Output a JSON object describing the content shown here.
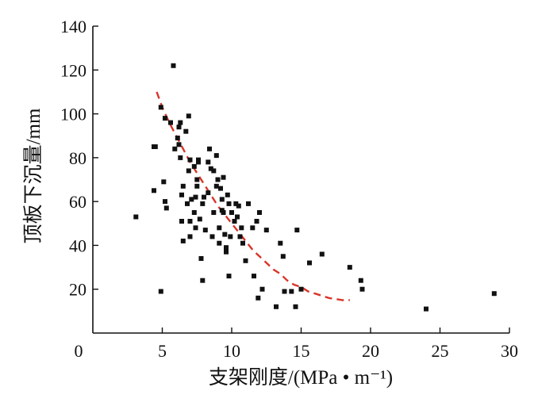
{
  "chart_data": {
    "type": "scatter",
    "title": "",
    "xlabel": "支架刚度/(MPa • m⁻¹)",
    "ylabel": "顶板下沉量/mm",
    "xlim": [
      0,
      30
    ],
    "ylim": [
      0,
      140
    ],
    "x_ticks": [
      0,
      5,
      10,
      15,
      20,
      25,
      30
    ],
    "y_ticks": [
      20,
      40,
      60,
      80,
      100,
      120,
      140
    ],
    "x_tick_labels": [
      "0",
      "5",
      "10",
      "15",
      "20",
      "25",
      "30"
    ],
    "y_tick_labels": [
      "20",
      "40",
      "60",
      "80",
      "100",
      "120",
      "140"
    ],
    "grid": false,
    "legend": "none",
    "colors": {
      "points": "#111111",
      "fit": "#d8352a"
    },
    "series": [
      {
        "kind": "points",
        "marker": "square",
        "points": [
          [
            3.1,
            53
          ],
          [
            4.4,
            85
          ],
          [
            4.5,
            85
          ],
          [
            4.4,
            65
          ],
          [
            4.9,
            103
          ],
          [
            4.9,
            19
          ],
          [
            5.1,
            69
          ],
          [
            5.2,
            60
          ],
          [
            5.3,
            57
          ],
          [
            5.2,
            98
          ],
          [
            5.6,
            96
          ],
          [
            5.8,
            122
          ],
          [
            5.9,
            84
          ],
          [
            6.1,
            89
          ],
          [
            6.2,
            94
          ],
          [
            6.2,
            86
          ],
          [
            6.3,
            80
          ],
          [
            6.3,
            96
          ],
          [
            6.4,
            63
          ],
          [
            6.4,
            51
          ],
          [
            6.5,
            67
          ],
          [
            6.5,
            42
          ],
          [
            6.7,
            92
          ],
          [
            6.8,
            59
          ],
          [
            6.9,
            99
          ],
          [
            6.9,
            74
          ],
          [
            7.0,
            44
          ],
          [
            7.0,
            51
          ],
          [
            7.0,
            79
          ],
          [
            7.1,
            61
          ],
          [
            7.3,
            76
          ],
          [
            7.3,
            55
          ],
          [
            7.4,
            62
          ],
          [
            7.4,
            48
          ],
          [
            7.5,
            70
          ],
          [
            7.5,
            67
          ],
          [
            7.6,
            79
          ],
          [
            7.6,
            78
          ],
          [
            7.7,
            52
          ],
          [
            7.8,
            34
          ],
          [
            7.9,
            24
          ],
          [
            7.9,
            59
          ],
          [
            8.0,
            62
          ],
          [
            8.1,
            47
          ],
          [
            8.3,
            78
          ],
          [
            8.3,
            64
          ],
          [
            8.4,
            84
          ],
          [
            8.5,
            75
          ],
          [
            8.6,
            44
          ],
          [
            8.7,
            55
          ],
          [
            8.7,
            74
          ],
          [
            8.9,
            81
          ],
          [
            8.9,
            67
          ],
          [
            9.0,
            70
          ],
          [
            9.1,
            48
          ],
          [
            9.1,
            41
          ],
          [
            9.2,
            66
          ],
          [
            9.3,
            61
          ],
          [
            9.3,
            56
          ],
          [
            9.4,
            71
          ],
          [
            9.4,
            55
          ],
          [
            9.5,
            45
          ],
          [
            9.6,
            39
          ],
          [
            9.6,
            37
          ],
          [
            9.7,
            63
          ],
          [
            9.8,
            59
          ],
          [
            9.8,
            26
          ],
          [
            9.9,
            44
          ],
          [
            10.0,
            55
          ],
          [
            10.2,
            51
          ],
          [
            10.3,
            59
          ],
          [
            10.4,
            53
          ],
          [
            10.5,
            58
          ],
          [
            10.6,
            44
          ],
          [
            10.7,
            48
          ],
          [
            10.8,
            41
          ],
          [
            11.0,
            33
          ],
          [
            11.2,
            59
          ],
          [
            11.5,
            48
          ],
          [
            11.6,
            26
          ],
          [
            11.8,
            51
          ],
          [
            11.9,
            16
          ],
          [
            12.0,
            55
          ],
          [
            12.2,
            20
          ],
          [
            12.5,
            47
          ],
          [
            13.2,
            12
          ],
          [
            13.5,
            41
          ],
          [
            13.7,
            35
          ],
          [
            13.8,
            19
          ],
          [
            14.3,
            19
          ],
          [
            14.6,
            12
          ],
          [
            14.7,
            47
          ],
          [
            15.0,
            20
          ],
          [
            15.6,
            32
          ],
          [
            16.5,
            36
          ],
          [
            18.5,
            30
          ],
          [
            19.3,
            24
          ],
          [
            19.4,
            20
          ],
          [
            24.0,
            11
          ],
          [
            28.9,
            18
          ]
        ]
      },
      {
        "kind": "fit",
        "style": "dashed",
        "points": [
          [
            4.6,
            110
          ],
          [
            5.0,
            103
          ],
          [
            5.5,
            96
          ],
          [
            6.0,
            90
          ],
          [
            6.5,
            84
          ],
          [
            7.0,
            78
          ],
          [
            7.5,
            73
          ],
          [
            8.0,
            68
          ],
          [
            8.5,
            63
          ],
          [
            9.0,
            58
          ],
          [
            9.5,
            54
          ],
          [
            10.0,
            50
          ],
          [
            10.5,
            46
          ],
          [
            11.0,
            42
          ],
          [
            11.5,
            38
          ],
          [
            12.0,
            35
          ],
          [
            12.5,
            32
          ],
          [
            13.0,
            29
          ],
          [
            13.5,
            27
          ],
          [
            14.0,
            24
          ],
          [
            14.5,
            22
          ],
          [
            15.0,
            21
          ],
          [
            15.5,
            19
          ],
          [
            16.0,
            18
          ],
          [
            16.5,
            17
          ],
          [
            17.0,
            16
          ],
          [
            17.5,
            15.5
          ],
          [
            18.0,
            15
          ],
          [
            18.5,
            15
          ]
        ]
      }
    ]
  }
}
